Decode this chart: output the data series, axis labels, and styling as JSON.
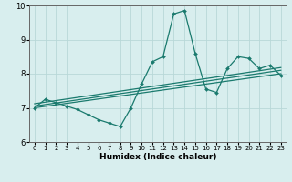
{
  "title": "",
  "xlabel": "Humidex (Indice chaleur)",
  "ylabel": "",
  "xlim": [
    -0.5,
    23.5
  ],
  "ylim": [
    6,
    10
  ],
  "xticks": [
    0,
    1,
    2,
    3,
    4,
    5,
    6,
    7,
    8,
    9,
    10,
    11,
    12,
    13,
    14,
    15,
    16,
    17,
    18,
    19,
    20,
    21,
    22,
    23
  ],
  "yticks": [
    6,
    7,
    8,
    9,
    10
  ],
  "bg_color": "#d8eeee",
  "grid_color": "#b8d8d8",
  "line_color": "#1a7a6e",
  "main_line": {
    "x": [
      0,
      1,
      2,
      3,
      4,
      5,
      6,
      7,
      8,
      9,
      10,
      11,
      12,
      13,
      14,
      15,
      16,
      17,
      18,
      19,
      20,
      21,
      22,
      23
    ],
    "y": [
      7.0,
      7.25,
      7.15,
      7.05,
      6.95,
      6.8,
      6.65,
      6.55,
      6.45,
      7.0,
      7.7,
      8.35,
      8.5,
      9.75,
      9.85,
      8.6,
      7.55,
      7.45,
      8.15,
      8.5,
      8.45,
      8.15,
      8.25,
      7.95
    ]
  },
  "straight_lines": [
    {
      "x": [
        0,
        23
      ],
      "y": [
        7.0,
        8.0
      ]
    },
    {
      "x": [
        0,
        23
      ],
      "y": [
        7.05,
        8.1
      ]
    },
    {
      "x": [
        0,
        23
      ],
      "y": [
        7.12,
        8.18
      ]
    }
  ]
}
